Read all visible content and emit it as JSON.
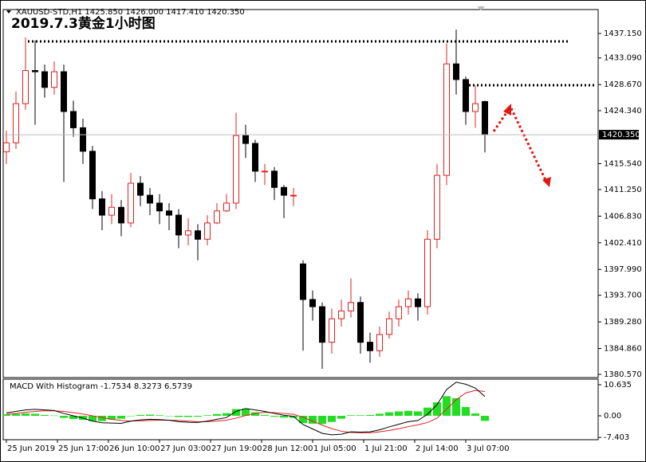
{
  "chart_data": [
    {
      "type": "candlestick",
      "title": "2019.7.3黄金1小时图",
      "subtitle": "XAUUSD-STD,H1  1425.850 1426.000 1417.410 1420.350",
      "x": [
        0,
        3,
        6,
        9,
        12,
        15,
        18,
        21,
        24,
        27,
        30,
        33,
        36,
        39,
        42,
        45,
        48,
        51,
        54,
        57,
        60,
        63,
        66,
        69,
        72,
        75,
        78,
        81,
        84,
        87,
        90,
        93,
        96,
        99,
        102,
        105,
        108,
        111,
        114,
        117,
        120,
        123,
        126,
        129,
        132,
        135,
        138,
        141,
        144,
        147,
        150
      ],
      "open": [
        1417.5,
        1419.0,
        1425.5,
        1431.0,
        1430.8,
        1428.2,
        1430.8,
        1424.2,
        1421.5,
        1417.6,
        1409.7,
        1407.0,
        1408.3,
        1405.7,
        1412.3,
        1410.3,
        1409.0,
        1407.7,
        1407.0,
        1403.7,
        1404.4,
        1403.0,
        1405.7,
        1407.7,
        1409.0,
        1420.2,
        1418.9,
        1414.3,
        1414.3,
        1411.6,
        1410.3,
        1398.9,
        1393.0,
        1391.8,
        1385.9,
        1389.8,
        1391.1,
        1392.5,
        1385.9,
        1384.5,
        1387.2,
        1389.8,
        1391.8,
        1393.1,
        1391.8,
        1403.0,
        1413.6,
        1432.1,
        1429.5,
        1424.2,
        1425.85
      ],
      "high": [
        1421.0,
        1427.5,
        1436.5,
        1436.0,
        1432.0,
        1432.5,
        1432.0,
        1426.0,
        1423.0,
        1418.5,
        1411.0,
        1410.5,
        1409.5,
        1414.0,
        1413.5,
        1411.5,
        1410.5,
        1409.0,
        1408.0,
        1406.5,
        1405.5,
        1407.0,
        1409.0,
        1410.5,
        1424.0,
        1422.0,
        1419.5,
        1415.5,
        1415.0,
        1412.0,
        1411.5,
        1399.5,
        1394.5,
        1392.5,
        1391.5,
        1393.0,
        1396.5,
        1393.5,
        1387.5,
        1388.5,
        1391.0,
        1393.0,
        1394.5,
        1394.0,
        1404.5,
        1415.5,
        1435.5,
        1437.8,
        1430.0,
        1428.5,
        1426.0
      ],
      "low": [
        1415.5,
        1418.0,
        1424.5,
        1422.0,
        1426.5,
        1427.0,
        1412.5,
        1420.0,
        1415.5,
        1408.0,
        1404.5,
        1405.5,
        1403.5,
        1405.0,
        1408.5,
        1407.0,
        1405.5,
        1404.5,
        1401.5,
        1402.0,
        1399.5,
        1402.0,
        1405.5,
        1407.5,
        1408.0,
        1416.5,
        1412.5,
        1412.0,
        1409.5,
        1406.5,
        1408.5,
        1384.5,
        1389.5,
        1381.5,
        1384.0,
        1388.5,
        1390.0,
        1384.0,
        1382.5,
        1383.5,
        1386.5,
        1388.5,
        1390.5,
        1389.5,
        1390.5,
        1401.5,
        1412.0,
        1427.0,
        1422.0,
        1421.5,
        1417.41
      ],
      "close": [
        1419.0,
        1425.5,
        1431.0,
        1430.8,
        1428.2,
        1430.8,
        1424.2,
        1421.5,
        1417.6,
        1409.7,
        1407.0,
        1408.3,
        1405.7,
        1412.3,
        1410.3,
        1409.0,
        1407.7,
        1407.0,
        1403.7,
        1404.4,
        1403.0,
        1405.7,
        1407.7,
        1409.0,
        1420.2,
        1418.9,
        1414.3,
        1414.3,
        1411.6,
        1410.3,
        1410.3,
        1393.0,
        1391.8,
        1385.9,
        1389.8,
        1391.1,
        1392.5,
        1385.9,
        1384.5,
        1387.2,
        1389.8,
        1391.8,
        1393.1,
        1391.8,
        1403.0,
        1413.6,
        1432.1,
        1429.5,
        1424.2,
        1425.5,
        1420.35
      ],
      "up_color": "#e02020",
      "down_color": "#000000",
      "xlim": [
        -1,
        185.5
      ],
      "ylim": [
        1380.04,
        1441.12
      ],
      "yticks": [
        {
          "value": 1437.15,
          "label": "1437.150"
        },
        {
          "value": 1433.09,
          "label": "1433.090"
        },
        {
          "value": 1428.67,
          "label": "1428.670"
        },
        {
          "value": 1424.34,
          "label": "1424.340"
        },
        {
          "value": 1415.54,
          "label": "1415.540"
        },
        {
          "value": 1411.25,
          "label": "1411.250"
        },
        {
          "value": 1406.83,
          "label": "1406.830"
        },
        {
          "value": 1402.41,
          "label": "1402.410"
        },
        {
          "value": 1397.99,
          "label": "1397.990"
        },
        {
          "value": 1393.7,
          "label": "1393.700"
        },
        {
          "value": 1389.28,
          "label": "1389.280"
        },
        {
          "value": 1384.86,
          "label": "1384.860"
        },
        {
          "value": 1380.57,
          "label": "1380.570"
        }
      ],
      "current_price": {
        "value": 1420.35,
        "label": "1420.350"
      }
    },
    {
      "type": "macd",
      "title": "MACD With Histogram -1.7534 8.3273 6.5739",
      "x": [
        0,
        3,
        6,
        9,
        12,
        15,
        18,
        21,
        24,
        27,
        30,
        33,
        36,
        39,
        42,
        45,
        48,
        51,
        54,
        57,
        60,
        63,
        66,
        69,
        72,
        75,
        78,
        81,
        84,
        87,
        90,
        93,
        96,
        99,
        102,
        105,
        108,
        111,
        114,
        117,
        120,
        123,
        126,
        129,
        132,
        135,
        138,
        141,
        144,
        147,
        150
      ],
      "series": [
        {
          "style": "bar",
          "color": "#22dd22",
          "values": [
            0.5,
            0.7,
            0.8,
            0.7,
            0.3,
            0.1,
            -0.7,
            -1.1,
            -1.4,
            -1.8,
            -1.8,
            -1.3,
            -1.0,
            0.0,
            0.3,
            0.4,
            0.2,
            0.0,
            -0.4,
            -0.4,
            -0.3,
            0.2,
            0.6,
            0.9,
            2.3,
            2.4,
            1.2,
            0.3,
            -0.3,
            -0.6,
            -0.7,
            -2.5,
            -2.7,
            -2.8,
            -2.1,
            -1.0,
            0.2,
            0.2,
            0.3,
            0.7,
            1.2,
            1.5,
            1.7,
            1.5,
            2.8,
            4.6,
            6.7,
            6.0,
            3.0,
            0.8,
            -1.7534
          ]
        },
        {
          "style": "line",
          "color": "#e02020",
          "values": [
            0.5,
            0.8,
            1.2,
            1.5,
            1.7,
            1.7,
            1.5,
            1.1,
            0.6,
            0.0,
            -0.6,
            -1.2,
            -1.6,
            -1.8,
            -1.7,
            -1.6,
            -1.5,
            -1.5,
            -1.6,
            -1.8,
            -2.0,
            -2.0,
            -1.8,
            -1.5,
            -0.8,
            0.1,
            0.8,
            1.2,
            1.1,
            0.8,
            0.5,
            -0.5,
            -1.8,
            -3.2,
            -4.4,
            -5.3,
            -5.7,
            -5.8,
            -5.8,
            -5.5,
            -5.0,
            -4.4,
            -3.7,
            -3.1,
            -2.3,
            -0.8,
            2.3,
            5.5,
            7.8,
            8.7,
            8.3273
          ]
        },
        {
          "style": "line",
          "color": "#000000",
          "values": [
            1.0,
            1.5,
            2.0,
            2.2,
            2.0,
            1.8,
            0.8,
            0.0,
            -0.8,
            -1.8,
            -2.4,
            -2.5,
            -2.6,
            -1.8,
            -1.4,
            -1.2,
            -1.3,
            -1.5,
            -2.0,
            -2.2,
            -2.3,
            -1.8,
            -1.2,
            -0.6,
            1.5,
            2.5,
            2.0,
            1.5,
            0.8,
            0.2,
            -0.2,
            -3.0,
            -4.5,
            -6.0,
            -6.5,
            -6.3,
            -5.5,
            -5.6,
            -5.5,
            -4.8,
            -3.8,
            -2.9,
            -2.0,
            -1.6,
            0.5,
            3.8,
            9.0,
            11.5,
            10.8,
            9.5,
            6.5739
          ]
        }
      ],
      "xlim": [
        -1,
        185.5
      ],
      "ylim": [
        -8.18,
        12.54
      ],
      "yticks": [
        10.635,
        {
          "value": 0,
          "label": "0.00"
        },
        -7.403
      ],
      "xticks": [
        {
          "value": 0,
          "label": "25 Jun 2019"
        },
        {
          "value": 16,
          "label": "25 Jun 17:00"
        },
        {
          "value": 32,
          "label": "26 Jun 10:00"
        },
        {
          "value": 48,
          "label": "27 Jun 03:00"
        },
        {
          "value": 64,
          "label": "27 Jun 19:00"
        },
        {
          "value": 80,
          "label": "28 Jun 12:00"
        },
        {
          "value": 96,
          "label": "1 Jul 05:00"
        },
        {
          "value": 112,
          "label": "1 Jul 21:00"
        },
        {
          "value": 128,
          "label": "2 Jul 14:00"
        },
        {
          "value": 144,
          "label": "3 Jul 07:00"
        }
      ]
    }
  ]
}
